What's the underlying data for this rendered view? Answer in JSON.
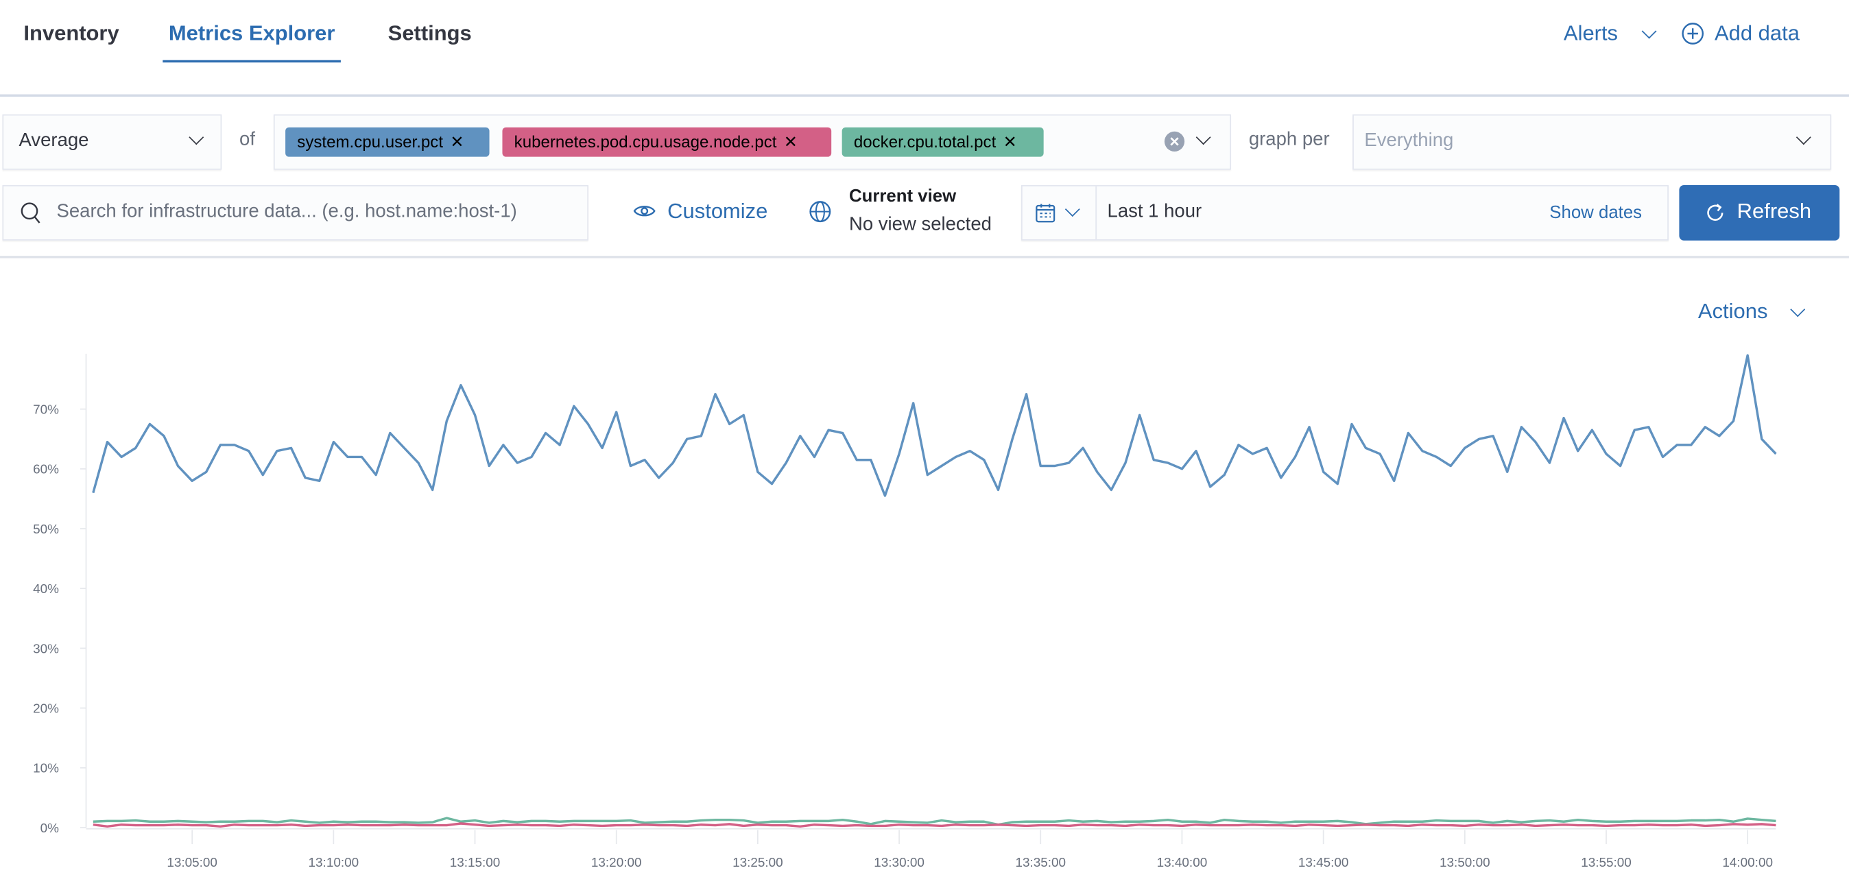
{
  "nav": {
    "tabs": [
      {
        "label": "Inventory"
      },
      {
        "label": "Metrics Explorer",
        "active": true
      },
      {
        "label": "Settings"
      }
    ],
    "alerts_label": "Alerts",
    "add_data_label": "Add data"
  },
  "toolbar": {
    "aggregation": "Average",
    "of_label": "of",
    "metrics": [
      {
        "label": "system.cpu.user.pct",
        "color": "#6092C0"
      },
      {
        "label": "kubernetes.pod.cpu.usage.node.pct",
        "color": "#D36086"
      },
      {
        "label": "docker.cpu.total.pct",
        "color": "#6DB7A0"
      }
    ],
    "graph_per_label": "graph per",
    "graph_per_placeholder": "Everything",
    "search_placeholder": "Search for infrastructure data... (e.g. host.name:host-1)",
    "customize_label": "Customize",
    "current_view_title": "Current view",
    "current_view_value": "No view selected",
    "time_range": "Last 1 hour",
    "show_dates_label": "Show dates",
    "refresh_label": "Refresh",
    "accent_color": "#2C6CB0"
  },
  "actions_label": "Actions",
  "chart_data": {
    "type": "line",
    "ylim": [
      0,
      79
    ],
    "yticks": [
      "0%",
      "10%",
      "20%",
      "30%",
      "40%",
      "50%",
      "60%",
      "70%"
    ],
    "ytick_values": [
      0,
      10,
      20,
      30,
      40,
      50,
      60,
      70
    ],
    "xticks": [
      "13:05:00",
      "13:10:00",
      "13:15:00",
      "13:20:00",
      "13:25:00",
      "13:30:00",
      "13:35:00",
      "13:40:00",
      "13:45:00",
      "13:50:00",
      "13:55:00",
      "14:00:00"
    ],
    "xlim": [
      "13:01:15",
      "14:01:00"
    ],
    "grid": false,
    "x": [
      "13:01:30",
      "13:02:00",
      "13:02:30",
      "13:03:00",
      "13:03:30",
      "13:04:00",
      "13:04:30",
      "13:05:00",
      "13:05:30",
      "13:06:00",
      "13:06:30",
      "13:07:00",
      "13:07:30",
      "13:08:00",
      "13:08:30",
      "13:09:00",
      "13:09:30",
      "13:10:00",
      "13:10:30",
      "13:11:00",
      "13:11:30",
      "13:12:00",
      "13:12:30",
      "13:13:00",
      "13:13:30",
      "13:14:00",
      "13:14:30",
      "13:15:00",
      "13:15:30",
      "13:16:00",
      "13:16:30",
      "13:17:00",
      "13:17:30",
      "13:18:00",
      "13:18:30",
      "13:19:00",
      "13:19:30",
      "13:20:00",
      "13:20:30",
      "13:21:00",
      "13:21:30",
      "13:22:00",
      "13:22:30",
      "13:23:00",
      "13:23:30",
      "13:24:00",
      "13:24:30",
      "13:25:00",
      "13:25:30",
      "13:26:00",
      "13:26:30",
      "13:27:00",
      "13:27:30",
      "13:28:00",
      "13:28:30",
      "13:29:00",
      "13:29:30",
      "13:30:00",
      "13:30:30",
      "13:31:00",
      "13:31:30",
      "13:32:00",
      "13:32:30",
      "13:33:00",
      "13:33:30",
      "13:34:00",
      "13:34:30",
      "13:35:00",
      "13:35:30",
      "13:36:00",
      "13:36:30",
      "13:37:00",
      "13:37:30",
      "13:38:00",
      "13:38:30",
      "13:39:00",
      "13:39:30",
      "13:40:00",
      "13:40:30",
      "13:41:00",
      "13:41:30",
      "13:42:00",
      "13:42:30",
      "13:43:00",
      "13:43:30",
      "13:44:00",
      "13:44:30",
      "13:45:00",
      "13:45:30",
      "13:46:00",
      "13:46:30",
      "13:47:00",
      "13:47:30",
      "13:48:00",
      "13:48:30",
      "13:49:00",
      "13:49:30",
      "13:50:00",
      "13:50:30",
      "13:51:00",
      "13:51:30",
      "13:52:00",
      "13:52:30",
      "13:53:00",
      "13:53:30",
      "13:54:00",
      "13:54:30",
      "13:55:00",
      "13:55:30",
      "13:56:00",
      "13:56:30",
      "13:57:00",
      "13:57:30",
      "13:58:00",
      "13:58:30",
      "13:59:00",
      "13:59:30",
      "14:00:00",
      "14:00:30",
      "14:01:00"
    ],
    "series": [
      {
        "name": "system.cpu.user.pct",
        "color": "#6092C0",
        "values": [
          56,
          64.5,
          62,
          63.5,
          67.5,
          65.5,
          60.5,
          58,
          59.5,
          64,
          64,
          63,
          59,
          63,
          63.5,
          58.5,
          58,
          64.5,
          62,
          62,
          59,
          66,
          63.5,
          61,
          56.5,
          68,
          74,
          69,
          60.5,
          64,
          61,
          62,
          66,
          64,
          70.5,
          67.5,
          63.5,
          69.5,
          60.5,
          61.5,
          58.5,
          61,
          65,
          65.5,
          72.5,
          67.5,
          69,
          59.5,
          57.5,
          61,
          65.5,
          62,
          66.5,
          66,
          61.5,
          61.5,
          55.5,
          62.5,
          71,
          59,
          60.5,
          62,
          63,
          61.5,
          56.5,
          65,
          72.5,
          60.5,
          60.5,
          61,
          63.5,
          59.5,
          56.5,
          61,
          69,
          61.5,
          61,
          60,
          63,
          57,
          59,
          64,
          62.5,
          63.5,
          58.5,
          62,
          67,
          59.5,
          57.5,
          67.5,
          63.5,
          62.5,
          58,
          66,
          63,
          62,
          60.5,
          63.5,
          65,
          65.5,
          59.5,
          67,
          64.5,
          61,
          68.5,
          63,
          66.5,
          62.5,
          60.5,
          66.5,
          67,
          62,
          64,
          64,
          67,
          65.5,
          68,
          79,
          65,
          62.5
        ]
      },
      {
        "name": "kubernetes.pod.cpu.usage.node.pct",
        "color": "#D36086",
        "values": [
          0.5,
          0.2,
          0.5,
          0.4,
          0.4,
          0.4,
          0.5,
          0.4,
          0.4,
          0.2,
          0.5,
          0.4,
          0.4,
          0.4,
          0.5,
          0.3,
          0.4,
          0.4,
          0.5,
          0.4,
          0.4,
          0.4,
          0.5,
          0.4,
          0.4,
          0.4,
          0.7,
          0.5,
          0.3,
          0.4,
          0.5,
          0.4,
          0.4,
          0.3,
          0.5,
          0.4,
          0.3,
          0.4,
          0.4,
          0.5,
          0.4,
          0.4,
          0.3,
          0.5,
          0.4,
          0.6,
          0.3,
          0.5,
          0.4,
          0.4,
          0.2,
          0.5,
          0.4,
          0.3,
          0.4,
          0.3,
          0.3,
          0.5,
          0.4,
          0.4,
          0.3,
          0.5,
          0.4,
          0.4,
          0.5,
          0.4,
          0.3,
          0.4,
          0.4,
          0.3,
          0.5,
          0.4,
          0.4,
          0.3,
          0.5,
          0.4,
          0.4,
          0.3,
          0.5,
          0.4,
          0.4,
          0.4,
          0.5,
          0.4,
          0.4,
          0.3,
          0.5,
          0.4,
          0.3,
          0.4,
          0.5,
          0.4,
          0.4,
          0.3,
          0.5,
          0.4,
          0.4,
          0.3,
          0.5,
          0.4,
          0.4,
          0.5,
          0.3,
          0.4,
          0.5,
          0.4,
          0.4,
          0.3,
          0.4,
          0.4,
          0.5,
          0.4,
          0.4,
          0.5,
          0.3,
          0.4,
          0.6,
          0.5,
          0.6,
          0.4
        ]
      },
      {
        "name": "docker.cpu.total.pct",
        "color": "#6DB7A0",
        "values": [
          1.0,
          1.1,
          1.1,
          1.2,
          1.0,
          1.0,
          1.1,
          1.0,
          0.9,
          1.0,
          1.0,
          1.1,
          1.1,
          0.9,
          1.2,
          1.0,
          0.8,
          1.0,
          0.9,
          1.0,
          1.0,
          0.9,
          0.9,
          0.8,
          0.9,
          1.6,
          1.0,
          1.2,
          0.8,
          1.1,
          0.9,
          1.1,
          1.1,
          1.0,
          1.1,
          1.1,
          1.1,
          1.1,
          1.2,
          0.8,
          0.9,
          1.0,
          1.0,
          1.2,
          1.3,
          1.3,
          1.2,
          0.8,
          1.0,
          1.0,
          1.1,
          1.1,
          1.1,
          1.3,
          1.0,
          0.6,
          1.1,
          1.0,
          0.9,
          0.8,
          1.2,
          0.9,
          1.0,
          1.0,
          0.5,
          0.9,
          1.0,
          1.0,
          1.0,
          1.2,
          1.0,
          1.1,
          0.9,
          1.0,
          1.0,
          1.1,
          1.3,
          1.0,
          1.0,
          0.8,
          1.3,
          1.1,
          1.0,
          1.0,
          0.8,
          1.0,
          1.0,
          1.0,
          1.1,
          0.9,
          0.6,
          0.8,
          1.0,
          1.0,
          1.0,
          1.2,
          1.1,
          1.1,
          1.1,
          0.8,
          1.1,
          0.9,
          1.1,
          1.2,
          1.0,
          1.3,
          1.1,
          1.0,
          1.0,
          1.1,
          1.1,
          1.1,
          1.1,
          1.2,
          1.2,
          1.3,
          1.0,
          1.5,
          1.3,
          1.1
        ]
      }
    ]
  }
}
